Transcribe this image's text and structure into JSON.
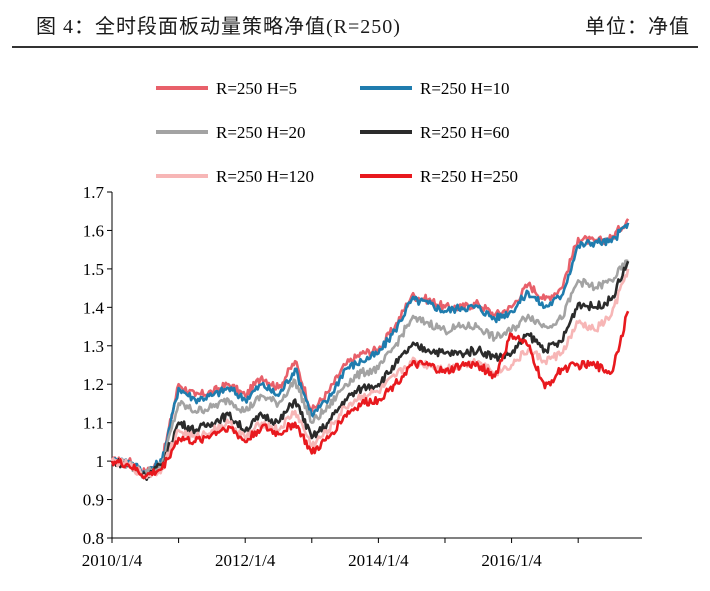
{
  "header": {
    "title": "图 4：全时段面板动量策略净值(R=250)",
    "unit": "单位：净值"
  },
  "chart_data": {
    "type": "line",
    "title": "",
    "xlabel": "",
    "ylabel": "",
    "ylim": [
      0.8,
      1.7
    ],
    "yticks": [
      "0.8",
      "0.9",
      "1",
      "1.1",
      "1.2",
      "1.3",
      "1.4",
      "1.5",
      "1.6",
      "1.7"
    ],
    "xticks": [
      "2010/1/4",
      "2012/1/4",
      "2014/1/4",
      "2016/1/4"
    ],
    "grid": false,
    "legend_position": "top",
    "x": [
      "2010-01",
      "2010-04",
      "2010-07",
      "2010-10",
      "2011-01",
      "2011-04",
      "2011-07",
      "2011-10",
      "2012-01",
      "2012-04",
      "2012-07",
      "2012-10",
      "2013-01",
      "2013-04",
      "2013-07",
      "2013-10",
      "2014-01",
      "2014-04",
      "2014-07",
      "2014-10",
      "2015-01",
      "2015-04",
      "2015-07",
      "2015-10",
      "2016-01",
      "2016-04",
      "2016-07",
      "2016-10",
      "2017-01",
      "2017-04",
      "2017-07",
      "2017-10"
    ],
    "series": [
      {
        "name": "R=250 H=5",
        "color": "#e8606a",
        "values": [
          1.0,
          1.0,
          0.97,
          1.0,
          1.2,
          1.17,
          1.18,
          1.2,
          1.17,
          1.22,
          1.19,
          1.26,
          1.13,
          1.18,
          1.25,
          1.28,
          1.29,
          1.35,
          1.43,
          1.42,
          1.4,
          1.4,
          1.41,
          1.38,
          1.4,
          1.46,
          1.42,
          1.45,
          1.58,
          1.57,
          1.58,
          1.63
        ]
      },
      {
        "name": "R=250 H=10",
        "color": "#1f7cae",
        "values": [
          1.0,
          1.0,
          0.97,
          1.0,
          1.19,
          1.16,
          1.17,
          1.19,
          1.16,
          1.2,
          1.17,
          1.24,
          1.12,
          1.16,
          1.24,
          1.26,
          1.28,
          1.34,
          1.42,
          1.41,
          1.39,
          1.4,
          1.4,
          1.37,
          1.39,
          1.44,
          1.4,
          1.43,
          1.56,
          1.57,
          1.57,
          1.62
        ]
      },
      {
        "name": "R=250 H=20",
        "color": "#a3a3a3",
        "values": [
          1.0,
          0.99,
          0.97,
          0.99,
          1.15,
          1.13,
          1.14,
          1.16,
          1.13,
          1.17,
          1.15,
          1.21,
          1.1,
          1.14,
          1.2,
          1.23,
          1.24,
          1.3,
          1.37,
          1.36,
          1.34,
          1.35,
          1.35,
          1.32,
          1.34,
          1.38,
          1.35,
          1.37,
          1.47,
          1.45,
          1.47,
          1.52
        ]
      },
      {
        "name": "R=250 H=60",
        "color": "#2b2b2b",
        "values": [
          1.0,
          0.99,
          0.96,
          0.99,
          1.1,
          1.08,
          1.1,
          1.12,
          1.08,
          1.12,
          1.1,
          1.16,
          1.06,
          1.1,
          1.16,
          1.19,
          1.2,
          1.25,
          1.3,
          1.29,
          1.28,
          1.28,
          1.29,
          1.27,
          1.28,
          1.33,
          1.29,
          1.31,
          1.41,
          1.4,
          1.42,
          1.52
        ]
      },
      {
        "name": "R=250 H=120",
        "color": "#f7b6b6",
        "values": [
          1.0,
          0.99,
          0.96,
          0.98,
          1.08,
          1.06,
          1.08,
          1.1,
          1.06,
          1.1,
          1.08,
          1.13,
          1.04,
          1.08,
          1.14,
          1.17,
          1.18,
          1.22,
          1.26,
          1.25,
          1.24,
          1.25,
          1.26,
          1.23,
          1.25,
          1.29,
          1.26,
          1.28,
          1.36,
          1.34,
          1.38,
          1.5
        ]
      },
      {
        "name": "R=250 H=250",
        "color": "#e8191e",
        "values": [
          1.0,
          0.99,
          0.96,
          0.98,
          1.06,
          1.05,
          1.07,
          1.09,
          1.05,
          1.09,
          1.07,
          1.1,
          1.02,
          1.06,
          1.12,
          1.15,
          1.16,
          1.2,
          1.25,
          1.25,
          1.23,
          1.25,
          1.25,
          1.22,
          1.33,
          1.3,
          1.19,
          1.24,
          1.25,
          1.25,
          1.23,
          1.39
        ]
      }
    ]
  }
}
